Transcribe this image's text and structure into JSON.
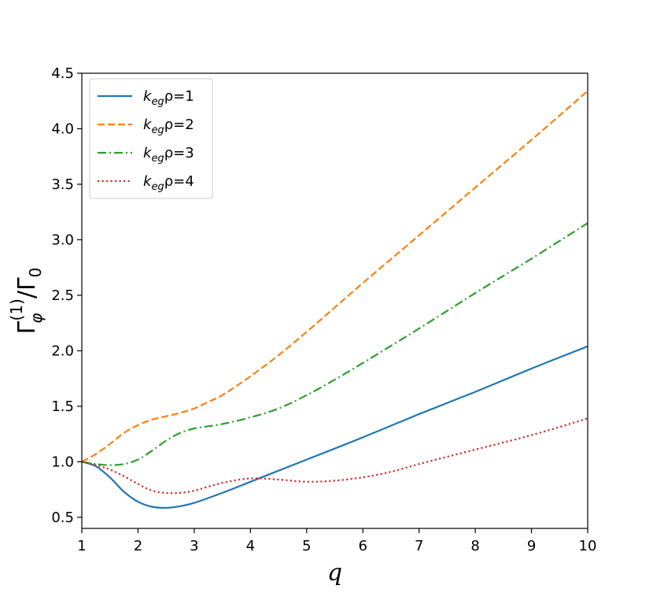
{
  "chart_data": {
    "type": "line",
    "xlabel": "q",
    "ylabel": "Γ",
    "ylabel_super": "(1)",
    "ylabel_sub": "φ",
    "ylabel_denom": "/Γ",
    "ylabel_denom_sub": "0",
    "xlim": [
      1,
      10
    ],
    "ylim": [
      0.4,
      4.5
    ],
    "x_ticks": [
      1,
      2,
      3,
      4,
      5,
      6,
      7,
      8,
      9,
      10
    ],
    "x_tick_labels": [
      "1",
      "2",
      "3",
      "4",
      "5",
      "6",
      "7",
      "8",
      "9",
      "10"
    ],
    "y_ticks": [
      0.5,
      1.0,
      1.5,
      2.0,
      2.5,
      3.0,
      3.5,
      4.0,
      4.5
    ],
    "y_tick_labels": [
      "0.5",
      "1.0",
      "1.5",
      "2.0",
      "2.5",
      "3.0",
      "3.5",
      "4.0",
      "4.5"
    ],
    "grid": false,
    "legend_position": "top-left",
    "series": [
      {
        "name": "k_eg ρ=1",
        "legend_base": "k",
        "legend_sub": "eg",
        "legend_rest": "ρ=1",
        "color": "#1f77b4",
        "dash": "solid",
        "x": [
          1,
          1.25,
          1.5,
          1.75,
          2,
          2.25,
          2.5,
          2.75,
          3,
          3.5,
          4,
          4.5,
          5,
          6,
          7,
          8,
          9,
          10
        ],
        "y": [
          1.0,
          0.96,
          0.86,
          0.73,
          0.64,
          0.595,
          0.585,
          0.6,
          0.63,
          0.72,
          0.82,
          0.92,
          1.02,
          1.22,
          1.43,
          1.63,
          1.84,
          2.04
        ]
      },
      {
        "name": "k_eg ρ=2",
        "legend_base": "k",
        "legend_sub": "eg",
        "legend_rest": "ρ=2",
        "color": "#ff7f0e",
        "dash": "dashed",
        "x": [
          1,
          1.25,
          1.5,
          1.75,
          2,
          2.25,
          2.5,
          2.75,
          3,
          3.25,
          3.5,
          4,
          4.5,
          5,
          5.5,
          6,
          7,
          8,
          9,
          10
        ],
        "y": [
          1.0,
          1.07,
          1.16,
          1.26,
          1.33,
          1.38,
          1.41,
          1.44,
          1.48,
          1.54,
          1.6,
          1.77,
          1.96,
          2.17,
          2.39,
          2.61,
          3.04,
          3.47,
          3.9,
          4.34
        ]
      },
      {
        "name": "k_eg ρ=3",
        "legend_base": "k",
        "legend_sub": "eg",
        "legend_rest": "ρ=3",
        "color": "#2ca02c",
        "dash": "dashdot",
        "x": [
          1,
          1.25,
          1.5,
          1.75,
          2,
          2.25,
          2.5,
          2.75,
          3,
          3.25,
          3.5,
          4,
          4.5,
          5,
          5.5,
          6,
          7,
          8,
          9,
          10
        ],
        "y": [
          1.0,
          0.98,
          0.97,
          0.98,
          1.02,
          1.1,
          1.19,
          1.26,
          1.3,
          1.32,
          1.34,
          1.4,
          1.48,
          1.6,
          1.74,
          1.89,
          2.2,
          2.52,
          2.83,
          3.15
        ]
      },
      {
        "name": "k_eg ρ=4",
        "legend_base": "k",
        "legend_sub": "eg",
        "legend_rest": "ρ=4",
        "color": "#d62728",
        "dash": "dotted",
        "x": [
          1,
          1.25,
          1.5,
          1.75,
          2,
          2.25,
          2.5,
          2.75,
          3,
          3.5,
          4,
          4.5,
          5,
          5.5,
          6,
          6.5,
          7,
          8,
          9,
          10
        ],
        "y": [
          1.0,
          0.97,
          0.93,
          0.87,
          0.8,
          0.74,
          0.72,
          0.72,
          0.74,
          0.81,
          0.85,
          0.84,
          0.82,
          0.83,
          0.86,
          0.91,
          0.98,
          1.11,
          1.24,
          1.39
        ]
      }
    ]
  }
}
